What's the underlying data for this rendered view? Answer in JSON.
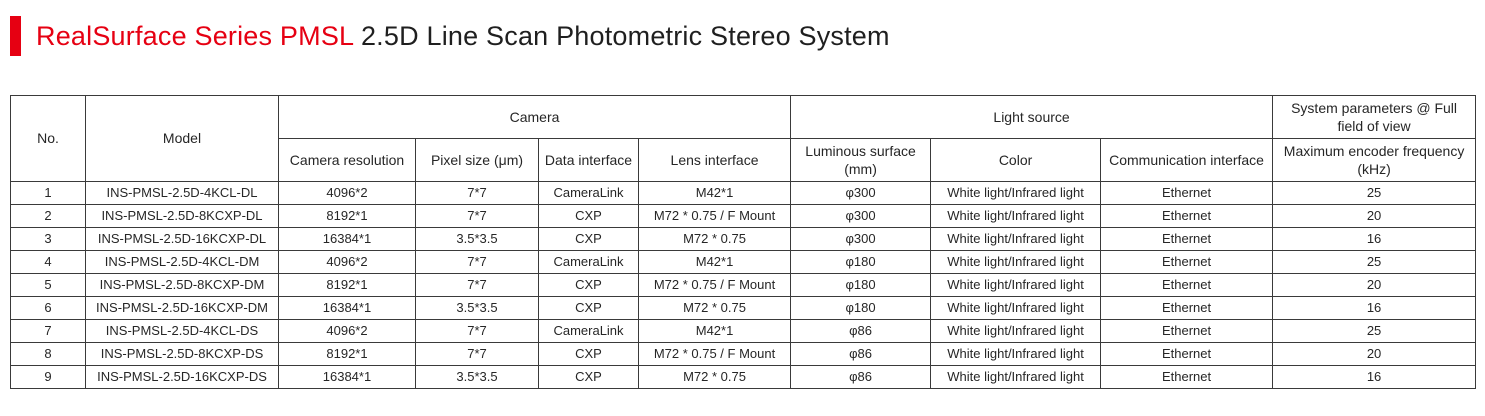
{
  "title": {
    "highlight": "RealSurface Series PMSL",
    "rest": " 2.5D Line Scan Photometric Stereo System",
    "accent_color": "#e60012"
  },
  "table": {
    "header_groups": {
      "no": "No.",
      "model": "Model",
      "camera": "Camera",
      "light_source": "Light source",
      "system_params": "System parameters @ Full field of view"
    },
    "subheaders": [
      "Camera resolution",
      "Pixel size (μm)",
      "Data interface",
      "Lens interface",
      "Luminous surface (mm)",
      "Color",
      "Communication interface",
      "Maximum encoder frequency (kHz)"
    ],
    "rows": [
      [
        "1",
        "INS-PMSL-2.5D-4KCL-DL",
        "4096*2",
        "7*7",
        "CameraLink",
        "M42*1",
        "φ300",
        "White light/Infrared light",
        "Ethernet",
        "25"
      ],
      [
        "2",
        "INS-PMSL-2.5D-8KCXP-DL",
        "8192*1",
        "7*7",
        "CXP",
        "M72 * 0.75 / F Mount",
        "φ300",
        "White light/Infrared light",
        "Ethernet",
        "20"
      ],
      [
        "3",
        "INS-PMSL-2.5D-16KCXP-DL",
        "16384*1",
        "3.5*3.5",
        "CXP",
        "M72 * 0.75",
        "φ300",
        "White light/Infrared light",
        "Ethernet",
        "16"
      ],
      [
        "4",
        "INS-PMSL-2.5D-4KCL-DM",
        "4096*2",
        "7*7",
        "CameraLink",
        "M42*1",
        "φ180",
        "White light/Infrared light",
        "Ethernet",
        "25"
      ],
      [
        "5",
        "INS-PMSL-2.5D-8KCXP-DM",
        "8192*1",
        "7*7",
        "CXP",
        "M72 * 0.75 / F Mount",
        "φ180",
        "White light/Infrared light",
        "Ethernet",
        "20"
      ],
      [
        "6",
        "INS-PMSL-2.5D-16KCXP-DM",
        "16384*1",
        "3.5*3.5",
        "CXP",
        "M72 * 0.75",
        "φ180",
        "White light/Infrared light",
        "Ethernet",
        "16"
      ],
      [
        "7",
        "INS-PMSL-2.5D-4KCL-DS",
        "4096*2",
        "7*7",
        "CameraLink",
        "M42*1",
        "φ86",
        "White light/Infrared light",
        "Ethernet",
        "25"
      ],
      [
        "8",
        "INS-PMSL-2.5D-8KCXP-DS",
        "8192*1",
        "7*7",
        "CXP",
        "M72 * 0.75 / F Mount",
        "φ86",
        "White light/Infrared light",
        "Ethernet",
        "20"
      ],
      [
        "9",
        "INS-PMSL-2.5D-16KCXP-DS",
        "16384*1",
        "3.5*3.5",
        "CXP",
        "M72 * 0.75",
        "φ86",
        "White light/Infrared light",
        "Ethernet",
        "16"
      ]
    ]
  }
}
